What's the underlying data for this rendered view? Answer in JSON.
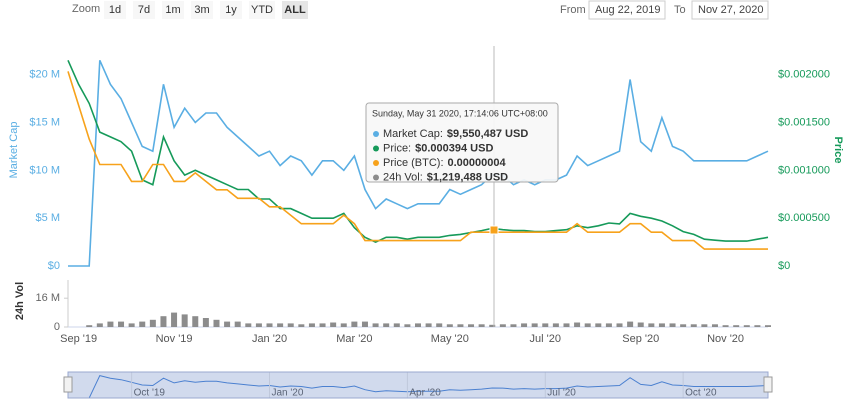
{
  "toolbar": {
    "zoom_label": "Zoom",
    "buttons": [
      "1d",
      "7d",
      "1m",
      "3m",
      "1y",
      "YTD",
      "ALL"
    ],
    "active_button": "ALL",
    "from_label": "From",
    "from": "Aug 22, 2019",
    "to_label": "To",
    "to": "Nov 27, 2020"
  },
  "chart_data": [
    {
      "type": "line",
      "ylabel": "Market Cap",
      "y2label": "Price",
      "categories": [
        null,
        "Sep '19",
        null,
        null,
        null,
        null,
        null,
        null,
        null,
        null,
        "Nov '19",
        null,
        null,
        null,
        null,
        null,
        null,
        null,
        null,
        "Jan '20",
        null,
        null,
        null,
        null,
        null,
        null,
        null,
        "Mar '20",
        null,
        null,
        null,
        null,
        null,
        null,
        null,
        null,
        "May '20",
        null,
        null,
        null,
        null,
        null,
        null,
        null,
        null,
        "Jul '20",
        null,
        null,
        null,
        null,
        null,
        null,
        null,
        null,
        "Sep '20",
        null,
        null,
        null,
        null,
        null,
        null,
        null,
        "Nov '20",
        null,
        null,
        null,
        null
      ],
      "ylim": [
        0,
        23000000
      ],
      "yticks": [
        {
          "value": 0,
          "label": "$0"
        },
        {
          "value": 5000000,
          "label": "$5 M"
        },
        {
          "value": 10000000,
          "label": "$10 M"
        },
        {
          "value": 15000000,
          "label": "$15 M"
        },
        {
          "value": 20000000,
          "label": "$20 M"
        }
      ],
      "y2lim": [
        0,
        0.0023
      ],
      "y2ticks": [
        {
          "value": 0,
          "label": "$0"
        },
        {
          "value": 0.0005,
          "label": "$0.000500"
        },
        {
          "value": 0.001,
          "label": "$0.001000"
        },
        {
          "value": 0.0015,
          "label": "$0.001500"
        },
        {
          "value": 0.002,
          "label": "$0.002000"
        }
      ],
      "y3lim": [
        0,
        2.6e-07
      ],
      "grid": false,
      "series": [
        {
          "name": "Market Cap",
          "color": "#5aaee3",
          "axis": "y",
          "values": [
            0,
            0,
            0,
            21500000,
            19000000,
            17500000,
            15000000,
            12500000,
            12000000,
            19000000,
            14500000,
            16500000,
            15000000,
            16000000,
            16000000,
            14500000,
            13500000,
            12500000,
            11500000,
            12000000,
            10500000,
            11500000,
            11000000,
            9500000,
            11000000,
            11000000,
            10000000,
            11500000,
            8000000,
            6000000,
            7000000,
            6500000,
            6000000,
            6500000,
            6500000,
            6500000,
            8000000,
            7500000,
            8000000,
            8500000,
            9550487,
            9500000,
            8500000,
            9000000,
            8500000,
            9000000,
            9000000,
            9500000,
            11500000,
            10500000,
            11000000,
            11500000,
            12000000,
            19500000,
            13000000,
            12000000,
            15500000,
            12500000,
            12000000,
            11000000,
            11000000,
            11000000,
            11000000,
            11000000,
            11000000,
            11500000,
            12000000
          ]
        },
        {
          "name": "Price",
          "color": "#169a5a",
          "axis": "y2",
          "values": [
            0.00215,
            0.0019,
            0.0017,
            0.0014,
            0.00135,
            0.0013,
            0.0012,
            0.0009,
            0.00085,
            0.00135,
            0.0011,
            0.00095,
            0.001,
            0.00095,
            0.0009,
            0.00085,
            0.0008,
            0.0008,
            0.0007,
            0.0007,
            0.0006,
            0.0006,
            0.00055,
            0.0005,
            0.0005,
            0.0005,
            0.00055,
            0.0004,
            0.0003,
            0.00025,
            0.0003,
            0.0003,
            0.00028,
            0.0003,
            0.0003,
            0.0003,
            0.00032,
            0.00033,
            0.00035,
            0.00037,
            0.000394,
            0.00038,
            0.00037,
            0.00037,
            0.00036,
            0.00036,
            0.00037,
            0.00038,
            0.00042,
            0.0004,
            0.00042,
            0.00045,
            0.00044,
            0.00055,
            0.00052,
            0.0005,
            0.00047,
            0.00042,
            0.00036,
            0.00033,
            0.00028,
            0.00027,
            0.00026,
            0.00026,
            0.00026,
            0.00028,
            0.0003
          ]
        },
        {
          "name": "Price (BTC)",
          "color": "#f7a21b",
          "axis": "y3",
          "values": [
            2.3e-07,
            1.9e-07,
            1.5e-07,
            1.2e-07,
            1.2e-07,
            1.2e-07,
            1e-07,
            1e-07,
            1.2e-07,
            1.2e-07,
            1e-07,
            1e-07,
            1.1e-07,
            1e-07,
            9e-08,
            9e-08,
            8e-08,
            8e-08,
            8e-08,
            7e-08,
            7e-08,
            6e-08,
            5e-08,
            5e-08,
            5e-08,
            5e-08,
            6e-08,
            5e-08,
            3e-08,
            3e-08,
            3e-08,
            3e-08,
            3e-08,
            3e-08,
            3e-08,
            3e-08,
            3e-08,
            3e-08,
            4e-08,
            4e-08,
            4e-08,
            4e-08,
            4e-08,
            4e-08,
            4e-08,
            4e-08,
            4e-08,
            4e-08,
            5e-08,
            4e-08,
            4e-08,
            4e-08,
            4e-08,
            5e-08,
            5e-08,
            4e-08,
            4e-08,
            3e-08,
            3e-08,
            3e-08,
            2e-08,
            2e-08,
            2e-08,
            2e-08,
            2e-08,
            2e-08,
            2e-08
          ]
        }
      ]
    },
    {
      "type": "bar",
      "ylabel": "24h Vol",
      "name": "24h Vol",
      "color": "#8c8c8c",
      "ylim": [
        0,
        25000000
      ],
      "yticks": [
        0,
        {
          "value": 16000000,
          "label": "16 M"
        }
      ],
      "values": [
        0,
        0,
        1000000,
        2000000,
        3000000,
        3000000,
        2000000,
        3000000,
        4000000,
        6000000,
        8000000,
        7000000,
        6000000,
        5000000,
        4000000,
        3000000,
        3000000,
        2000000,
        2000000,
        2000000,
        2000000,
        2000000,
        1500000,
        2000000,
        2000000,
        2500000,
        2000000,
        3000000,
        3000000,
        2000000,
        2000000,
        2000000,
        1500000,
        2000000,
        2000000,
        2000000,
        1500000,
        1500000,
        1500000,
        1500000,
        1219488,
        1500000,
        1500000,
        2000000,
        2000000,
        2000000,
        2000000,
        2000000,
        2500000,
        2000000,
        2000000,
        2000000,
        2000000,
        3000000,
        2500000,
        2000000,
        2000000,
        2000000,
        1500000,
        1500000,
        1500000,
        1500000,
        1000000,
        1000000,
        1000000,
        1000000,
        1000000
      ]
    }
  ],
  "navigator": {
    "categories": [
      null,
      null,
      null,
      null,
      null,
      null,
      "Oct '19",
      null,
      null,
      null,
      null,
      null,
      null,
      null,
      null,
      null,
      null,
      null,
      null,
      "Jan '20",
      null,
      null,
      null,
      null,
      null,
      null,
      null,
      null,
      null,
      null,
      null,
      null,
      "Apr '20",
      null,
      null,
      null,
      null,
      null,
      null,
      null,
      null,
      null,
      null,
      null,
      null,
      "Jul '20",
      null,
      null,
      null,
      null,
      null,
      null,
      null,
      null,
      null,
      null,
      null,
      null,
      "Oct '20",
      null,
      null,
      null,
      null,
      null,
      null,
      null,
      null
    ]
  },
  "tooltip": {
    "date": "Sunday, May 31 2020, 17:14:06 UTC+08:00",
    "items": [
      {
        "label": "Market Cap:",
        "value": "$9,550,487 USD"
      },
      {
        "label": "Price:",
        "value": "$0.000394 USD"
      },
      {
        "label": "Price (BTC):",
        "value": "0.00000004"
      },
      {
        "label": "24h Vol:",
        "value": "$1,219,488 USD"
      }
    ]
  }
}
